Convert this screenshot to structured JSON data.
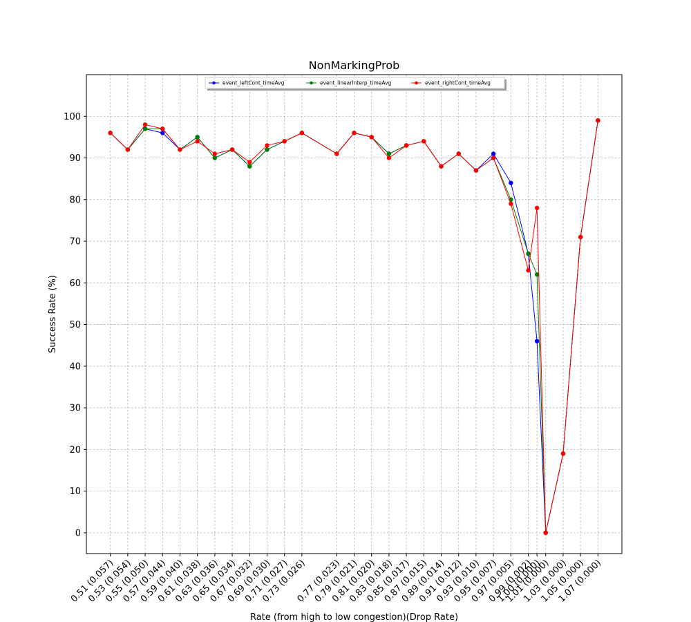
{
  "chart_data": {
    "type": "line",
    "title": "NonMarkingProb",
    "xlabel": "Rate (from high to low congestion)(Drop Rate)",
    "ylabel": "Success Rate (%)",
    "x": [
      0.51,
      0.53,
      0.55,
      0.57,
      0.59,
      0.61,
      0.63,
      0.65,
      0.67,
      0.69,
      0.71,
      0.73,
      0.77,
      0.79,
      0.81,
      0.83,
      0.85,
      0.87,
      0.89,
      0.91,
      0.93,
      0.95,
      0.97,
      0.99,
      1.0,
      1.01,
      1.03,
      1.05,
      1.07
    ],
    "x_tick_labels": [
      "0.51 (0.057)",
      "0.53 (0.054)",
      "0.55 (0.050)",
      "0.57 (0.044)",
      "0.59 (0.040)",
      "0.61 (0.038)",
      "0.63 (0.036)",
      "0.65 (0.034)",
      "0.67 (0.032)",
      "0.69 (0.030)",
      "0.71 (0.027)",
      "0.73 (0.026)",
      "0.77 (0.023)",
      "0.79 (0.021)",
      "0.81 (0.020)",
      "0.83 (0.018)",
      "0.85 (0.017)",
      "0.87 (0.015)",
      "0.89 (0.014)",
      "0.91 (0.012)",
      "0.93 (0.010)",
      "0.95 (0.007)",
      "0.97 (0.005)",
      "0.99 (0.002)",
      "1.00 (0.000)",
      "1.01 (0.000)",
      "1.03 (0.000)",
      "1.05 (0.000)",
      "1.07 (0.000)"
    ],
    "ylim": [
      -5,
      110
    ],
    "xlim": [
      0.4825,
      1.0975
    ],
    "y_ticks": [
      0,
      10,
      20,
      30,
      40,
      50,
      60,
      70,
      80,
      90,
      100
    ],
    "grid": true,
    "legend_placement": "upper-center",
    "series": [
      {
        "name": "event_leftCont_timeAvg",
        "color": "#0000ff",
        "values": [
          96,
          92,
          97,
          96,
          92,
          95,
          90,
          92,
          88,
          92,
          94,
          96,
          91,
          96,
          95,
          91,
          93,
          94,
          88,
          91,
          87,
          91,
          84,
          67,
          46,
          0,
          19,
          71,
          99
        ]
      },
      {
        "name": "event_linearInterp_timeAvg",
        "color": "#008000",
        "values": [
          96,
          92,
          97,
          97,
          92,
          95,
          90,
          92,
          88,
          92,
          94,
          96,
          91,
          96,
          95,
          91,
          93,
          94,
          88,
          91,
          87,
          90,
          80,
          67,
          62,
          0,
          19,
          71,
          99
        ]
      },
      {
        "name": "event_rightCont_timeAvg",
        "color": "#ff0000",
        "values": [
          96,
          92,
          98,
          97,
          92,
          94,
          91,
          92,
          89,
          93,
          94,
          96,
          91,
          96,
          95,
          90,
          93,
          94,
          88,
          91,
          87,
          90,
          79,
          63,
          78,
          0,
          19,
          71,
          99
        ]
      }
    ]
  }
}
